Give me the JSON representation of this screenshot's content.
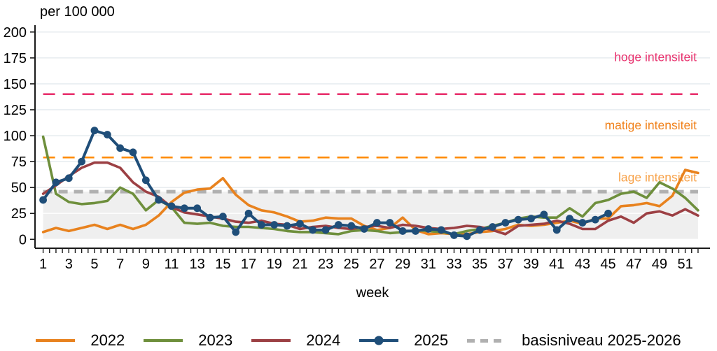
{
  "title": "per 100 000",
  "xlabel": "week",
  "chart_data": {
    "type": "line",
    "x_range": [
      1,
      52
    ],
    "x_tick_labels": [
      1,
      3,
      5,
      7,
      9,
      11,
      13,
      15,
      17,
      19,
      21,
      23,
      25,
      27,
      29,
      31,
      33,
      35,
      37,
      39,
      41,
      43,
      45,
      47,
      49,
      51
    ],
    "ylim": [
      0,
      200
    ],
    "y_ticks": [
      0,
      25,
      50,
      75,
      100,
      125,
      150,
      175,
      200
    ],
    "grid": true,
    "baseline_shade": {
      "from": 0,
      "to": 46,
      "color": "#efefef"
    },
    "series": [
      {
        "name": "2022",
        "color": "#e8821e",
        "marker": false,
        "values": [
          7,
          11,
          8,
          11,
          14,
          10,
          14,
          10,
          14,
          23,
          36,
          45,
          48,
          49,
          59,
          43,
          33,
          28,
          26,
          22,
          17,
          18,
          21,
          20,
          20,
          13,
          9,
          11,
          21,
          9,
          5,
          6,
          5,
          5,
          7,
          8,
          10,
          14,
          13,
          14,
          16,
          18,
          15,
          20,
          20,
          32,
          33,
          35,
          32,
          42,
          67,
          64
        ]
      },
      {
        "name": "2023",
        "color": "#6e8f3c",
        "marker": false,
        "values": [
          99,
          44,
          36,
          34,
          35,
          37,
          50,
          44,
          28,
          38,
          31,
          16,
          15,
          16,
          13,
          12,
          12,
          11,
          10,
          8,
          7,
          7,
          6,
          5,
          8,
          9,
          8,
          6,
          7,
          9,
          8,
          7,
          5,
          8,
          10,
          13,
          16,
          20,
          22,
          21,
          21,
          30,
          22,
          35,
          38,
          44,
          46,
          40,
          55,
          49,
          40,
          28
        ]
      },
      {
        "name": "2024",
        "color": "#9c4044",
        "marker": false,
        "values": [
          44,
          52,
          61,
          69,
          74,
          74,
          69,
          55,
          46,
          41,
          31,
          26,
          24,
          22,
          20,
          17,
          16,
          18,
          15,
          14,
          10,
          12,
          13,
          11,
          10,
          12,
          13,
          11,
          14,
          13,
          11,
          10,
          11,
          13,
          12,
          9,
          5,
          13,
          14,
          15,
          18,
          15,
          10,
          10,
          18,
          22,
          16,
          25,
          27,
          23,
          29,
          23
        ]
      },
      {
        "name": "2025",
        "color": "#1f4e79",
        "marker": true,
        "values": [
          38,
          55,
          59,
          75,
          105,
          101,
          88,
          84,
          57,
          38,
          32,
          30,
          30,
          21,
          22,
          7,
          25,
          14,
          14,
          13,
          15,
          9,
          9,
          14,
          13,
          10,
          16,
          16,
          8,
          8,
          10,
          9,
          4,
          3,
          9,
          12,
          16,
          19,
          20,
          24,
          9,
          20,
          16,
          19,
          25
        ]
      }
    ],
    "threshold_lines": [
      {
        "label": "hoge intensiteit",
        "value": 140,
        "color": "#e8326e",
        "label_color": "#e8326e",
        "label_value": 176,
        "thick": false
      },
      {
        "label": "matige intensiteit",
        "value": 79,
        "color": "#ff8c05",
        "label_color": "#f08019",
        "label_value": 110,
        "thick": false
      },
      {
        "label": "lage intensiteit",
        "value": 46,
        "color": "#b0b0b0",
        "label_color": "#f7a24a",
        "label_value": 60,
        "thick": true
      }
    ]
  },
  "legend": {
    "items": [
      {
        "label": "2022",
        "color": "#e8821e",
        "type": "line"
      },
      {
        "label": "2023",
        "color": "#6e8f3c",
        "type": "line"
      },
      {
        "label": "2024",
        "color": "#9c4044",
        "type": "line"
      },
      {
        "label": "2025",
        "color": "#1f4e79",
        "type": "line-marker"
      },
      {
        "label": "basisniveau 2025-2026",
        "color": "#b0b0b0",
        "type": "dashed"
      }
    ]
  }
}
